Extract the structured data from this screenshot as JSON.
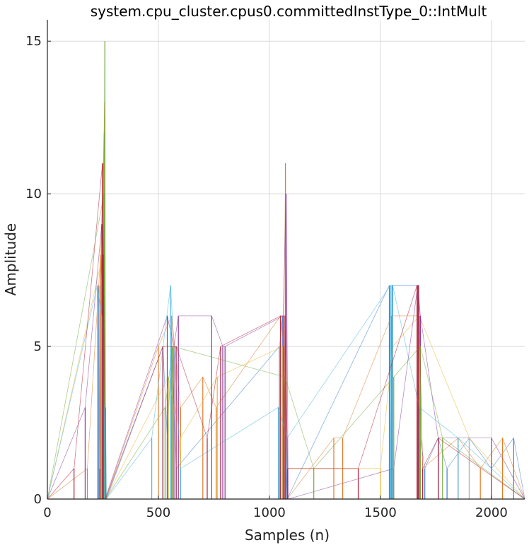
{
  "chart_data": {
    "type": "line",
    "title": "system.cpu_cluster.cpus0.committedInstType_0::IntMult",
    "xlabel": "Samples (n)",
    "ylabel": "Amplitude",
    "xlim": [
      0,
      2150
    ],
    "ylim": [
      0,
      15.7
    ],
    "xticks": [
      0,
      500,
      1000,
      1500,
      2000
    ],
    "yticks": [
      0,
      5,
      10,
      15
    ],
    "xtick_labels": [
      "0",
      "500",
      "1000",
      "1500",
      "2000"
    ],
    "ytick_labels": [
      "0",
      "5",
      "10",
      "15"
    ],
    "grid": true,
    "legend": "none",
    "colors": [
      "#3a7fcf",
      "#e07b2a",
      "#e8b830",
      "#8b3a9a",
      "#73ab3c",
      "#4fb8e0",
      "#b5213a"
    ],
    "series": [
      {
        "x": [
          0,
          230,
          232,
          236,
          240,
          250,
          256,
          258,
          262,
          266,
          520,
          540,
          560,
          580,
          1045,
          1060,
          1071,
          1080,
          1540,
          1548,
          1552,
          1670,
          1680,
          1700,
          1760,
          1800,
          1900,
          2000,
          2100,
          2150
        ],
        "values": [
          0,
          0,
          7,
          1,
          7,
          9,
          12,
          1,
          3,
          0,
          5,
          2,
          5,
          1,
          5,
          6,
          2,
          0,
          7,
          1,
          7,
          7,
          2,
          1,
          2,
          1,
          2,
          1,
          2,
          0
        ]
      },
      {
        "x": [
          0,
          180,
          240,
          252,
          258,
          262,
          500,
          560,
          600,
          700,
          760,
          1050,
          1065,
          1072,
          1080,
          1290,
          1330,
          1550,
          1672,
          1690,
          1850,
          1950,
          2050,
          2150
        ],
        "values": [
          0,
          1,
          8,
          11,
          13,
          0,
          5,
          6,
          3,
          4,
          3,
          6,
          5,
          11,
          0,
          2,
          2,
          6,
          6,
          1,
          2,
          1,
          2,
          0
        ]
      },
      {
        "x": [
          0,
          250,
          258,
          262,
          545,
          600,
          765,
          1060,
          1080,
          1500,
          1555,
          1675,
          1900,
          2150
        ],
        "values": [
          0,
          8,
          12,
          0,
          4,
          2,
          4,
          5,
          1,
          1,
          5,
          6,
          2,
          0
        ]
      },
      {
        "x": [
          0,
          170,
          245,
          250,
          260,
          540,
          570,
          590,
          740,
          790,
          800,
          1062,
          1075,
          1085,
          1560,
          1668,
          1680,
          1760,
          2000,
          2150
        ],
        "values": [
          0,
          3,
          9,
          7,
          0,
          6,
          5,
          6,
          6,
          5,
          5,
          6,
          10,
          0,
          1,
          7,
          6,
          2,
          2,
          0
        ]
      },
      {
        "x": [
          0,
          255,
          259,
          262,
          530,
          565,
          1070,
          1200,
          1560,
          1680,
          1780,
          2150
        ],
        "values": [
          0,
          10,
          15,
          0,
          3,
          5,
          4,
          1,
          4,
          5,
          2,
          0
        ]
      },
      {
        "x": [
          0,
          225,
          245,
          255,
          265,
          470,
          555,
          600,
          1040,
          1080,
          1545,
          1555,
          1675,
          1850,
          2150
        ],
        "values": [
          0,
          7,
          6,
          3,
          0,
          2,
          7,
          1,
          3,
          2,
          7,
          7,
          3,
          2,
          0
        ]
      },
      {
        "x": [
          0,
          120,
          248,
          252,
          262,
          520,
          580,
          720,
          780,
          1050,
          1070,
          1082,
          1400,
          1665,
          1672,
          1690,
          1760,
          2150
        ],
        "values": [
          0,
          1,
          11,
          8,
          0,
          5,
          5,
          2,
          5,
          6,
          6,
          1,
          1,
          7,
          7,
          1,
          2,
          0
        ]
      }
    ]
  }
}
